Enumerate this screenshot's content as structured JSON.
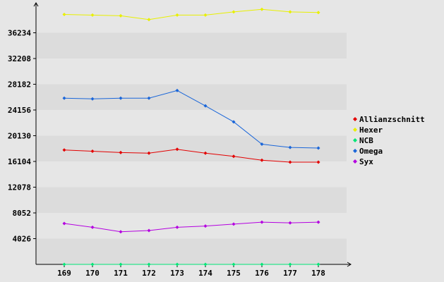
{
  "chart_data": {
    "type": "line",
    "categories": [
      "169",
      "170",
      "171",
      "172",
      "173",
      "174",
      "175",
      "176",
      "177",
      "178"
    ],
    "y_ticks": [
      4026,
      8052,
      12078,
      16104,
      20130,
      24156,
      28182,
      32208,
      36234
    ],
    "ylim": [
      0,
      40260
    ],
    "grid": "horizontal bands",
    "legend_position": "right",
    "background_color": "#e6e6e6",
    "band_color": "#dcdcdc",
    "series": [
      {
        "name": "Allianzschnitt",
        "color": "#e30000",
        "values": [
          17900,
          17700,
          17500,
          17400,
          18000,
          17400,
          16900,
          16300,
          16000,
          16000
        ]
      },
      {
        "name": "Hexer",
        "color": "#e8f000",
        "values": [
          39100,
          39000,
          38900,
          38300,
          39000,
          39000,
          39500,
          39900,
          39500,
          39400
        ]
      },
      {
        "name": "NCB",
        "color": "#00e676",
        "values": [
          0,
          0,
          0,
          0,
          0,
          0,
          0,
          0,
          0,
          0
        ]
      },
      {
        "name": "Omega",
        "color": "#1a66d9",
        "values": [
          26000,
          25900,
          26000,
          26000,
          27200,
          24800,
          22300,
          18800,
          18300,
          18200
        ]
      },
      {
        "name": "Syx",
        "color": "#b400e0",
        "values": [
          6400,
          5800,
          5100,
          5300,
          5800,
          6000,
          6300,
          6600,
          6500,
          6600
        ]
      }
    ]
  }
}
